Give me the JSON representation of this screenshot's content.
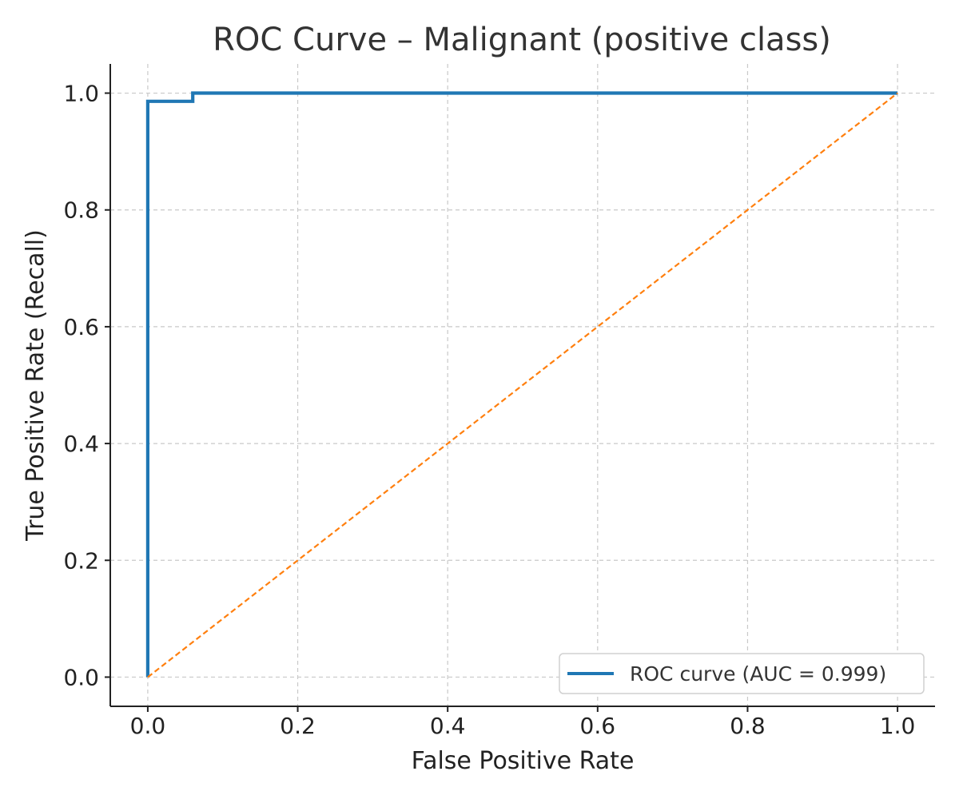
{
  "chart_data": {
    "type": "line",
    "title": "ROC Curve – Malignant (positive class)",
    "xlabel": "False Positive Rate",
    "ylabel": "True Positive Rate (Recall)",
    "xlim": [
      -0.05,
      1.05
    ],
    "ylim": [
      -0.05,
      1.05
    ],
    "xticks": [
      "0.0",
      "0.2",
      "0.4",
      "0.6",
      "0.8",
      "1.0"
    ],
    "yticks": [
      "0.0",
      "0.2",
      "0.4",
      "0.6",
      "0.8",
      "1.0"
    ],
    "grid": true,
    "legend_position": "lower-right",
    "series": [
      {
        "name": "ROC curve (AUC = 0.999)",
        "color": "#1f77b4",
        "style": "solid",
        "x": [
          0.0,
          0.0,
          0.0,
          0.06,
          0.06,
          1.0
        ],
        "y": [
          0.0,
          0.986,
          0.986,
          0.986,
          1.0,
          1.0
        ]
      },
      {
        "color": "#ff7f0e",
        "style": "dashed",
        "x": [
          0.0,
          1.0
        ],
        "y": [
          0.0,
          1.0
        ]
      }
    ]
  }
}
